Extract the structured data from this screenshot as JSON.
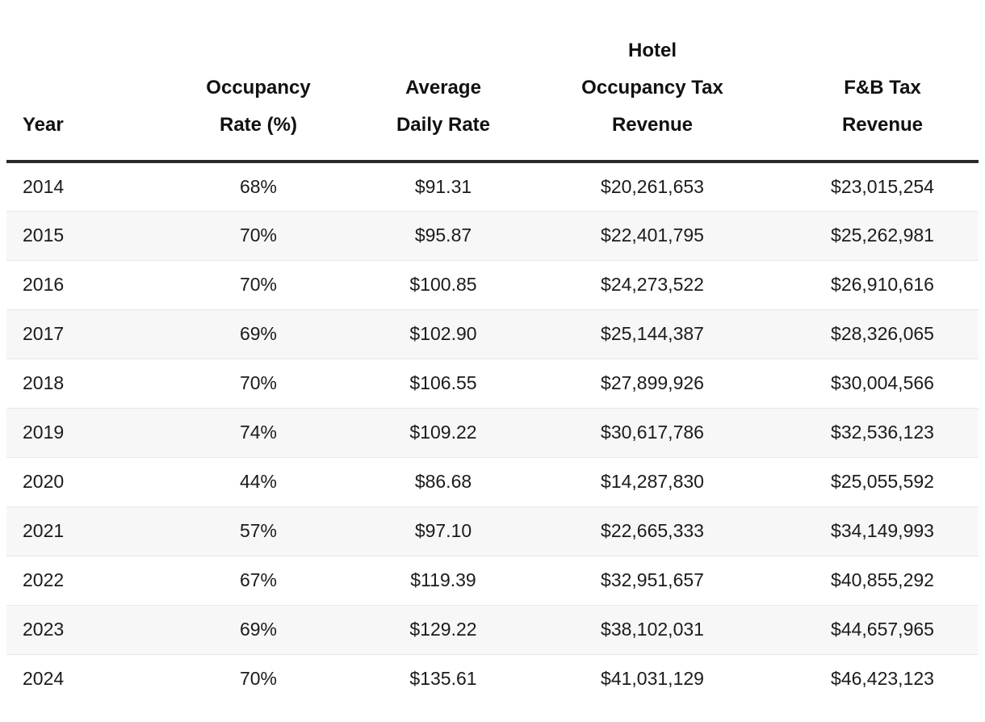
{
  "colors": {
    "background": "#ffffff",
    "text": "#1b1b1b",
    "header_text": "#111111",
    "header_rule": "#2b2b2b",
    "row_stripe": "#f7f7f7",
    "row_divider": "#e8e8e8"
  },
  "chart_data": {
    "type": "table",
    "title": "",
    "columns": [
      {
        "label": "Year",
        "lines": [
          "Year"
        ],
        "align": "left"
      },
      {
        "label": "Occupancy Rate (%)",
        "lines": [
          "Occupancy",
          "Rate (%)"
        ],
        "align": "center"
      },
      {
        "label": "Average Daily Rate",
        "lines": [
          "Average",
          "Daily Rate"
        ],
        "align": "center"
      },
      {
        "label": "Hotel Occupancy Tax Revenue",
        "lines": [
          "Hotel",
          "Occupancy Tax",
          "Revenue"
        ],
        "align": "center"
      },
      {
        "label": "F&B Tax Revenue",
        "lines": [
          "F&B Tax",
          "Revenue"
        ],
        "align": "center"
      }
    ],
    "rows": [
      [
        "2014",
        "68%",
        "$91.31",
        "$20,261,653",
        "$23,015,254"
      ],
      [
        "2015",
        "70%",
        "$95.87",
        "$22,401,795",
        "$25,262,981"
      ],
      [
        "2016",
        "70%",
        "$100.85",
        "$24,273,522",
        "$26,910,616"
      ],
      [
        "2017",
        "69%",
        "$102.90",
        "$25,144,387",
        "$28,326,065"
      ],
      [
        "2018",
        "70%",
        "$106.55",
        "$27,899,926",
        "$30,004,566"
      ],
      [
        "2019",
        "74%",
        "$109.22",
        "$30,617,786",
        "$32,536,123"
      ],
      [
        "2020",
        "44%",
        "$86.68",
        "$14,287,830",
        "$25,055,592"
      ],
      [
        "2021",
        "57%",
        "$97.10",
        "$22,665,333",
        "$34,149,993"
      ],
      [
        "2022",
        "67%",
        "$119.39",
        "$32,951,657",
        "$40,855,292"
      ],
      [
        "2023",
        "69%",
        "$129.22",
        "$38,102,031",
        "$44,657,965"
      ],
      [
        "2024",
        "70%",
        "$135.61",
        "$41,031,129",
        "$46,423,123"
      ]
    ],
    "years": [
      2014,
      2015,
      2016,
      2017,
      2018,
      2019,
      2020,
      2021,
      2022,
      2023,
      2024
    ],
    "occupancy_rate_pct": [
      68,
      70,
      70,
      69,
      70,
      74,
      44,
      57,
      67,
      69,
      70
    ],
    "average_daily_rate": [
      91.31,
      95.87,
      100.85,
      102.9,
      106.55,
      109.22,
      86.68,
      97.1,
      119.39,
      129.22,
      135.61
    ],
    "hotel_occupancy_tax_revenue": [
      20261653,
      22401795,
      24273522,
      25144387,
      27899926,
      30617786,
      14287830,
      22665333,
      32951657,
      38102031,
      41031129
    ],
    "fb_tax_revenue": [
      23015254,
      25262981,
      26910616,
      28326065,
      30004566,
      32536123,
      25055592,
      34149993,
      40855292,
      44657965,
      46423123
    ],
    "layout": {
      "striped_rows": true,
      "stripe_start": "second_row",
      "header_alignment": "bottom",
      "grid": "horizontal-only"
    }
  }
}
